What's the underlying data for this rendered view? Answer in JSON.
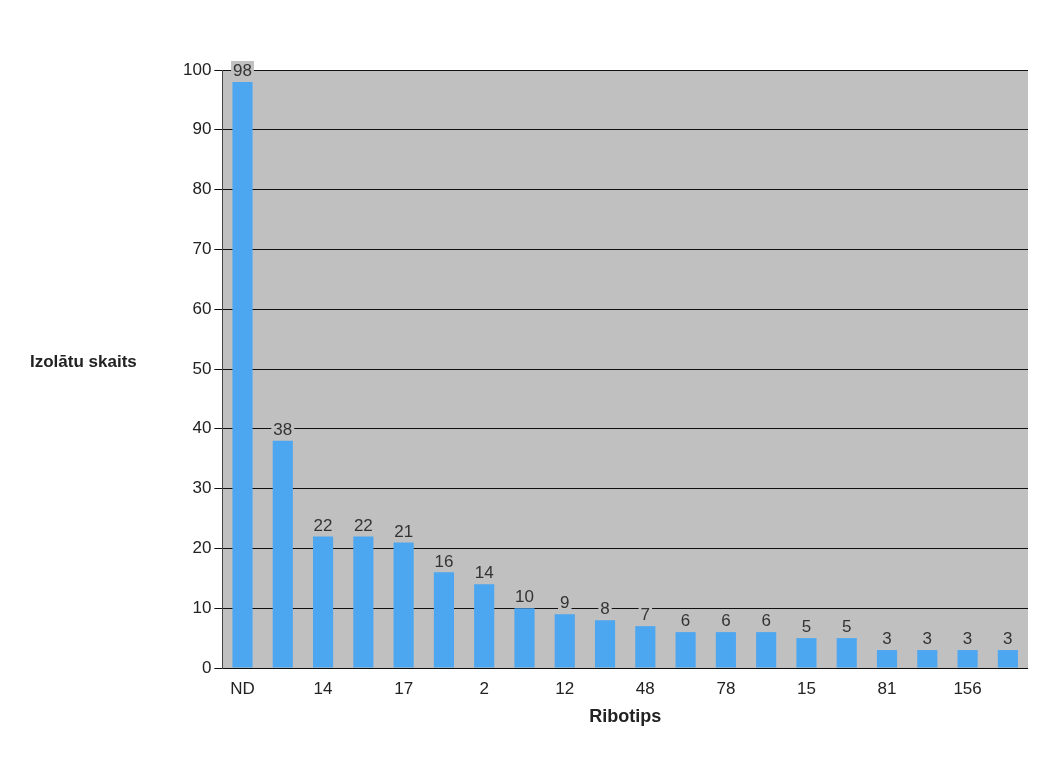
{
  "chart_data": {
    "type": "bar",
    "xlabel": "Ribotips",
    "ylabel": "Izolātu skaits",
    "categories": [
      "ND",
      null,
      "14",
      null,
      "17",
      null,
      "2",
      null,
      "12",
      null,
      "48",
      null,
      "78",
      null,
      "15",
      null,
      "81",
      null,
      "156",
      null
    ],
    "values": [
      98,
      38,
      22,
      22,
      21,
      16,
      14,
      10,
      9,
      8,
      7,
      6,
      6,
      6,
      5,
      5,
      3,
      3,
      3,
      3
    ],
    "color": "#4da6f0",
    "ylim": [
      0,
      100
    ],
    "yticks": [
      0,
      10,
      20,
      30,
      40,
      50,
      60,
      70,
      80,
      90,
      100
    ],
    "grid": "y",
    "data_labels": true,
    "legend": false
  }
}
